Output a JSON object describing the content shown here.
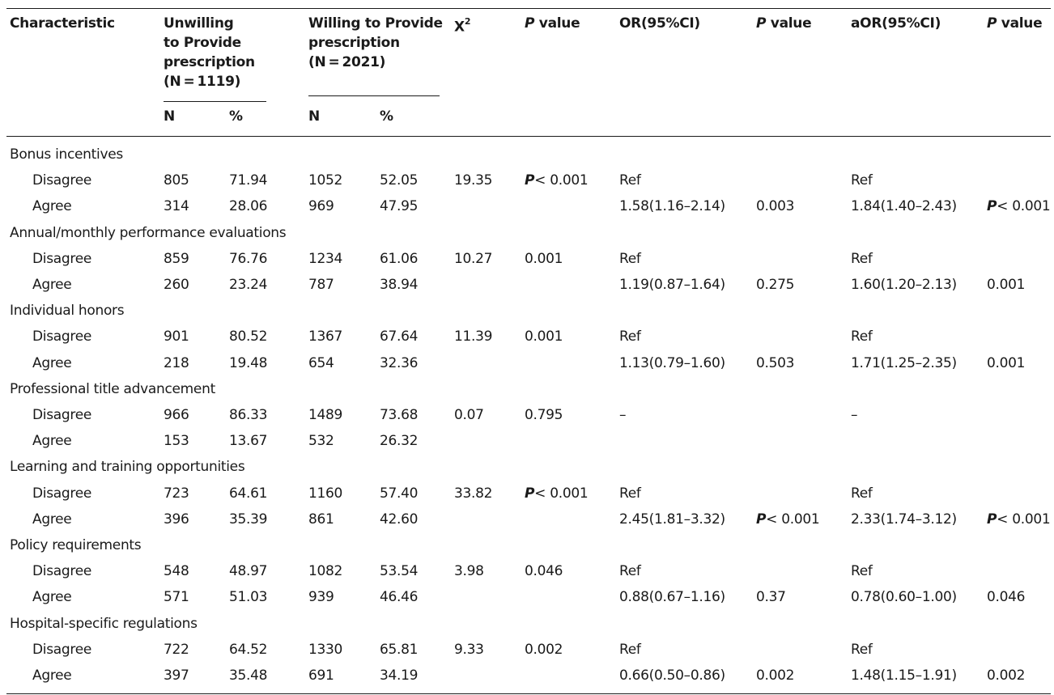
{
  "headers": {
    "characteristic": "Characteristic",
    "unwilling": [
      "Unwilling",
      "to Provide",
      "prescription",
      "(N = 1119)"
    ],
    "willing": [
      "Willing to Provide",
      "prescription",
      "(N = 2021)"
    ],
    "chi_base": "X",
    "chi_sup": "2",
    "p1_italic": "P",
    "p1_rest": " value",
    "or": "OR(95%CI)",
    "p2_italic": "P",
    "p2_rest": " value",
    "aor": "aOR(95%CI)",
    "p3_italic": "P",
    "p3_rest": " value",
    "n": "N",
    "pct": "%"
  },
  "groups": [
    {
      "label": "Bonus incentives",
      "rows": [
        {
          "label": "Disagree",
          "un_n": "805",
          "un_pct": "71.94",
          "wi_n": "1052",
          "wi_pct": "52.05",
          "chi": "19.35",
          "p1": "< 0.001",
          "p1_bold": true,
          "or": "Ref",
          "p2": "",
          "aor": "Ref",
          "p3": ""
        },
        {
          "label": "Agree",
          "un_n": "314",
          "un_pct": "28.06",
          "wi_n": "969",
          "wi_pct": "47.95",
          "chi": "",
          "p1": "",
          "or": "1.58(1.16–2.14)",
          "p2": "0.003",
          "aor": "1.84(1.40–2.43)",
          "p3": "< 0.001",
          "p3_bold": true
        }
      ]
    },
    {
      "label": "Annual/monthly performance evaluations",
      "rows": [
        {
          "label": "Disagree",
          "un_n": "859",
          "un_pct": "76.76",
          "wi_n": "1234",
          "wi_pct": "61.06",
          "chi": "10.27",
          "p1": "0.001",
          "or": "Ref",
          "p2": "",
          "aor": "Ref",
          "p3": ""
        },
        {
          "label": "Agree",
          "un_n": "260",
          "un_pct": "23.24",
          "wi_n": "787",
          "wi_pct": "38.94",
          "chi": "",
          "p1": "",
          "or": "1.19(0.87–1.64)",
          "p2": "0.275",
          "aor": "1.60(1.20–2.13)",
          "p3": "0.001"
        }
      ]
    },
    {
      "label": "Individual honors",
      "rows": [
        {
          "label": "Disagree",
          "un_n": "901",
          "un_pct": "80.52",
          "wi_n": "1367",
          "wi_pct": "67.64",
          "chi": "11.39",
          "p1": "0.001",
          "or": "Ref",
          "p2": "",
          "aor": "Ref",
          "p3": ""
        },
        {
          "label": "Agree",
          "un_n": "218",
          "un_pct": "19.48",
          "wi_n": "654",
          "wi_pct": "32.36",
          "chi": "",
          "p1": "",
          "or": "1.13(0.79–1.60)",
          "p2": "0.503",
          "aor": "1.71(1.25–2.35)",
          "p3": "0.001"
        }
      ]
    },
    {
      "label": "Professional title advancement",
      "rows": [
        {
          "label": "Disagree",
          "un_n": "966",
          "un_pct": "86.33",
          "wi_n": "1489",
          "wi_pct": "73.68",
          "chi": "0.07",
          "p1": "0.795",
          "or": "–",
          "p2": "",
          "aor": "–",
          "p3": ""
        },
        {
          "label": "Agree",
          "un_n": "153",
          "un_pct": "13.67",
          "wi_n": "532",
          "wi_pct": "26.32",
          "chi": "",
          "p1": "",
          "or": "",
          "p2": "",
          "aor": "",
          "p3": ""
        }
      ]
    },
    {
      "label": "Learning and training opportunities",
      "rows": [
        {
          "label": "Disagree",
          "un_n": "723",
          "un_pct": "64.61",
          "wi_n": "1160",
          "wi_pct": "57.40",
          "chi": "33.82",
          "p1": "< 0.001",
          "p1_bold": true,
          "or": "Ref",
          "p2": "",
          "aor": "Ref",
          "p3": ""
        },
        {
          "label": "Agree",
          "un_n": "396",
          "un_pct": "35.39",
          "wi_n": "861",
          "wi_pct": "42.60",
          "chi": "",
          "p1": "",
          "or": "2.45(1.81–3.32)",
          "p2": "< 0.001",
          "p2_bold": true,
          "aor": "2.33(1.74–3.12)",
          "p3": "< 0.001",
          "p3_bold": true
        }
      ]
    },
    {
      "label": "Policy requirements",
      "rows": [
        {
          "label": "Disagree",
          "un_n": "548",
          "un_pct": "48.97",
          "wi_n": "1082",
          "wi_pct": "53.54",
          "chi": "3.98",
          "p1": "0.046",
          "or": "Ref",
          "p2": "",
          "aor": "Ref",
          "p3": ""
        },
        {
          "label": "Agree",
          "un_n": "571",
          "un_pct": "51.03",
          "wi_n": "939",
          "wi_pct": "46.46",
          "chi": "",
          "p1": "",
          "or": "0.88(0.67–1.16)",
          "p2": "0.37",
          "aor": "0.78(0.60–1.00)",
          "p3": "0.046"
        }
      ]
    },
    {
      "label": "Hospital-specific regulations",
      "rows": [
        {
          "label": "Disagree",
          "un_n": "722",
          "un_pct": "64.52",
          "wi_n": "1330",
          "wi_pct": "65.81",
          "chi": "9.33",
          "p1": "0.002",
          "or": "Ref",
          "p2": "",
          "aor": "Ref",
          "p3": ""
        },
        {
          "label": "Agree",
          "un_n": "397",
          "un_pct": "35.48",
          "wi_n": "691",
          "wi_pct": "34.19",
          "chi": "",
          "p1": "",
          "or": "0.66(0.50–0.86)",
          "p2": "0.002",
          "aor": "1.48(1.15–1.91)",
          "p3": "0.002"
        }
      ]
    }
  ]
}
